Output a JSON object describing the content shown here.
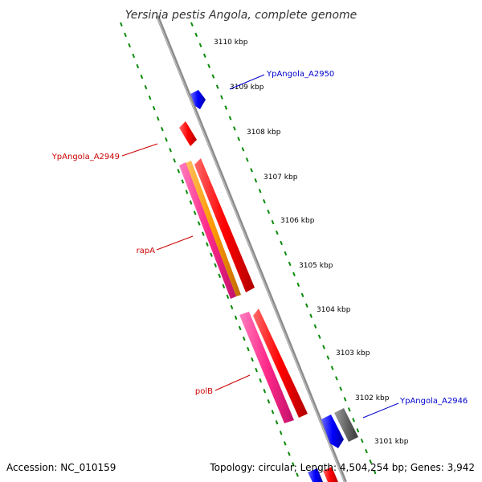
{
  "title": "Yersinia pestis Angola, complete genome",
  "ticks": [
    "3110 kbp",
    "3109 kbp",
    "3108 kbp",
    "3107 kbp",
    "3106 kbp",
    "3105 kbp",
    "3104 kbp",
    "3103 kbp",
    "3102 kbp",
    "3101 kbp"
  ],
  "gene_labels": {
    "a2950": "YpAngola_A2950",
    "a2949": "YpAngola_A2949",
    "rapa": "rapA",
    "polb": "polB",
    "a2946": "YpAngola_A2946"
  },
  "footer": {
    "accession": "Accession: NC_010159",
    "stats": "Topology: circular; Length: 4,504,254 bp; Genes: 3,942"
  },
  "colors": {
    "backbone": "#8c8c8c",
    "guides": "#0a8a0a",
    "forward_cds": "#ff0000",
    "reverse_cds": "#ff2a8a",
    "orange_cds": "#ff9900",
    "blue_cds": "#0000ff",
    "gray_cds": "#666666",
    "label_red": "#cc0000",
    "label_blue": "#0000cc"
  }
}
